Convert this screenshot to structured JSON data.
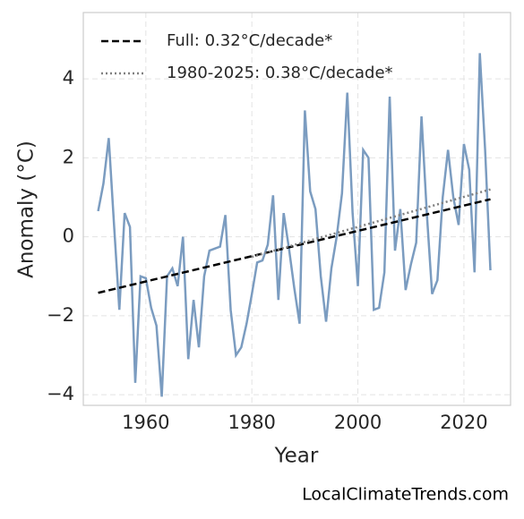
{
  "chart_data": {
    "type": "line",
    "x_label": "Year",
    "y_label": "Anomaly (°C)",
    "watermark": "LocalClimateTrends.com",
    "xlim": [
      1948.2,
      2028.8
    ],
    "xticks": [
      1960,
      1980,
      2000,
      2020
    ],
    "ylim": [
      -4.27,
      5.68
    ],
    "yticks": [
      {
        "value": -4,
        "label": "−4"
      },
      {
        "value": -2,
        "label": "−2"
      },
      0,
      2,
      4
    ],
    "grid": true,
    "legend": "upper left",
    "series": [
      {
        "color": "#7b9cc0",
        "line_style": "solid",
        "x": [
          1951,
          1952,
          1953,
          1954,
          1955,
          1956,
          1957,
          1958,
          1959,
          1960,
          1961,
          1962,
          1963,
          1964,
          1965,
          1966,
          1967,
          1968,
          1969,
          1970,
          1971,
          1972,
          1973,
          1974,
          1975,
          1976,
          1977,
          1978,
          1979,
          1980,
          1981,
          1982,
          1983,
          1984,
          1985,
          1986,
          1987,
          1988,
          1989,
          1990,
          1991,
          1992,
          1993,
          1994,
          1995,
          1996,
          1997,
          1998,
          1999,
          2000,
          2001,
          2002,
          2003,
          2004,
          2005,
          2006,
          2007,
          2008,
          2009,
          2010,
          2011,
          2012,
          2013,
          2014,
          2015,
          2016,
          2017,
          2018,
          2019,
          2020,
          2021,
          2022,
          2023,
          2024,
          2025
        ],
        "values": [
          0.65,
          1.35,
          2.5,
          0.3,
          -1.85,
          0.6,
          0.25,
          -3.7,
          -1.0,
          -1.05,
          -1.8,
          -2.25,
          -4.05,
          -1.0,
          -0.8,
          -1.25,
          0.0,
          -3.1,
          -1.6,
          -2.8,
          -1.0,
          -0.35,
          -0.3,
          -0.25,
          0.55,
          -1.85,
          -3.0,
          -2.8,
          -2.2,
          -1.45,
          -0.65,
          -0.6,
          -0.2,
          1.05,
          -1.6,
          0.6,
          -0.3,
          -1.3,
          -2.2,
          3.2,
          1.15,
          0.7,
          -1.0,
          -2.15,
          -0.8,
          0.0,
          1.1,
          3.65,
          0.6,
          -1.25,
          2.2,
          2.0,
          -1.85,
          -1.8,
          -0.9,
          3.55,
          -0.35,
          0.7,
          -1.35,
          -0.7,
          -0.15,
          3.05,
          0.6,
          -1.45,
          -1.1,
          1.0,
          2.2,
          1.0,
          0.3,
          2.35,
          1.7,
          -0.9,
          4.65,
          2.2,
          -0.85
        ]
      },
      {
        "name": "Full: 0.32°C/decade*",
        "color": "#000000",
        "line_style": "dashed",
        "x": [
          1951,
          2025
        ],
        "values": [
          -1.42,
          0.95
        ]
      },
      {
        "name": "1980-2025: 0.38°C/decade*",
        "color": "#808080",
        "line_style": "dotted",
        "x": [
          1980,
          2025
        ],
        "values": [
          -0.51,
          1.2
        ]
      }
    ]
  }
}
